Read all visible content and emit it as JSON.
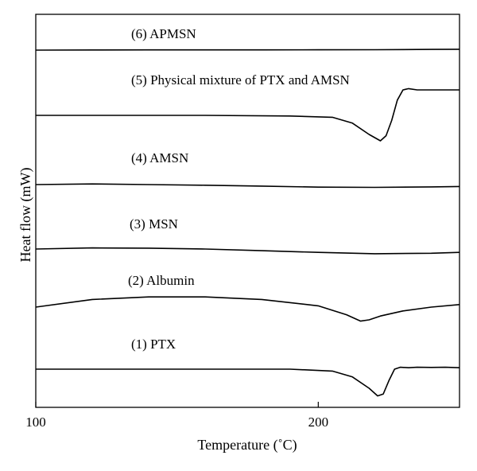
{
  "chart_data": {
    "type": "line",
    "xlabel": "Temperature (˚C)",
    "ylabel": "Heat flow (mW)",
    "xlim": [
      100,
      250
    ],
    "xticks": [
      100,
      200
    ],
    "tick_labels": [
      "100",
      "200"
    ],
    "grid": false,
    "legend": "none",
    "series": [
      {
        "name": "(6) APMSN",
        "x": [
          100,
          120,
          140,
          160,
          180,
          200,
          220,
          240,
          250
        ],
        "y": [
          0.0,
          0.02,
          0.03,
          0.03,
          0.03,
          0.04,
          0.05,
          0.08,
          0.1
        ]
      },
      {
        "name": "(5) Physical mixture of PTX and AMSN",
        "x": [
          100,
          130,
          160,
          190,
          205,
          212,
          218,
          222,
          224,
          226,
          228,
          230,
          232,
          235,
          240,
          245,
          250
        ],
        "y": [
          0.0,
          0.0,
          0.0,
          -0.05,
          -0.15,
          -0.6,
          -1.5,
          -2.0,
          -1.6,
          -0.4,
          1.2,
          2.0,
          2.1,
          2.0,
          2.0,
          2.0,
          2.0
        ]
      },
      {
        "name": "(4) AMSN",
        "x": [
          100,
          120,
          140,
          160,
          180,
          200,
          220,
          240,
          250
        ],
        "y": [
          0.0,
          0.05,
          0.0,
          -0.05,
          -0.12,
          -0.2,
          -0.22,
          -0.18,
          -0.15
        ]
      },
      {
        "name": "(3) MSN",
        "x": [
          100,
          120,
          140,
          160,
          180,
          200,
          220,
          240,
          250
        ],
        "y": [
          0.0,
          0.1,
          0.08,
          0.0,
          -0.15,
          -0.3,
          -0.42,
          -0.38,
          -0.3
        ]
      },
      {
        "name": "(2) Albumin",
        "x": [
          100,
          120,
          140,
          160,
          180,
          200,
          210,
          215,
          218,
          222,
          230,
          240,
          250
        ],
        "y": [
          0.0,
          0.6,
          0.8,
          0.8,
          0.6,
          0.1,
          -0.6,
          -1.1,
          -1.0,
          -0.7,
          -0.3,
          0.0,
          0.2
        ]
      },
      {
        "name": "(1) PTX",
        "x": [
          100,
          130,
          160,
          190,
          205,
          212,
          218,
          221,
          223,
          225,
          227,
          229,
          232,
          235,
          240,
          245,
          250
        ],
        "y": [
          0.0,
          0.0,
          0.0,
          0.0,
          -0.2,
          -0.8,
          -2.0,
          -2.8,
          -2.6,
          -1.2,
          0.0,
          0.2,
          0.15,
          0.2,
          0.18,
          0.2,
          0.15
        ]
      }
    ]
  }
}
